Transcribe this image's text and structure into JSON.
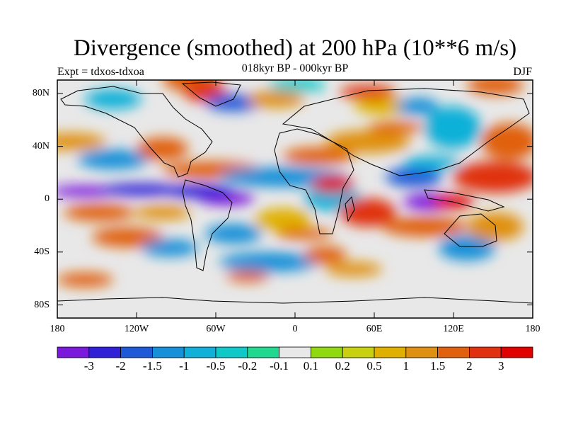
{
  "title": "Divergence (smoothed) at 200 hPa (10**6 m/s)",
  "experiment": "Expt = tdxos-tdxoa",
  "subtitle": "018kyr BP - 000kyr BP",
  "season": "DJF",
  "latitude_labels": [
    "80N",
    "40N",
    "0",
    "40S",
    "80S"
  ],
  "longitude_labels": [
    "180",
    "120W",
    "60W",
    "0",
    "60E",
    "120E",
    "180"
  ],
  "colorbar": {
    "labels": [
      "-3",
      "-2",
      "-1.5",
      "-1",
      "-0.5",
      "-0.2",
      "-0.1",
      "0.1",
      "0.2",
      "0.5",
      "1",
      "1.5",
      "2",
      "3"
    ],
    "colors": [
      "#7a18dc",
      "#3020d8",
      "#1e5ad8",
      "#1690d8",
      "#10b0d8",
      "#10c8c8",
      "#20d890",
      "#e8e8e8",
      "#90d810",
      "#c8d010",
      "#e0b000",
      "#e09010",
      "#e06010",
      "#e03010",
      "#e00000"
    ]
  }
}
